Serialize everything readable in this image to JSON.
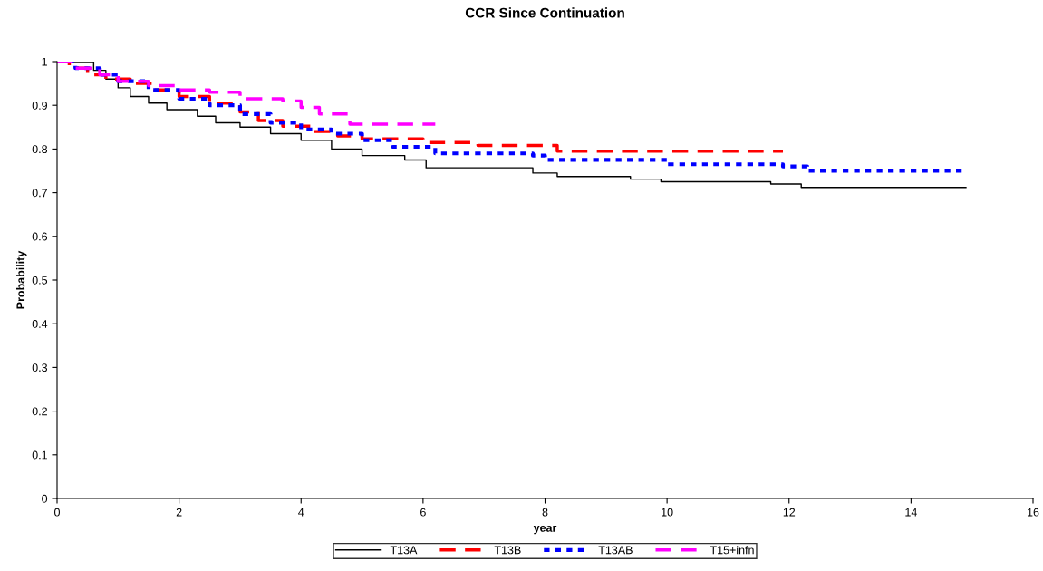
{
  "chart_data": {
    "type": "step",
    "title": "CCR Since Continuation",
    "xlabel": "year",
    "ylabel": "Probability",
    "xlim": [
      0,
      16
    ],
    "xticks": [
      0,
      2,
      4,
      6,
      8,
      10,
      12,
      14,
      16
    ],
    "ylim": [
      0,
      1
    ],
    "yticks": [
      0,
      0.1,
      0.2,
      0.3,
      0.4,
      0.5,
      0.6,
      0.7,
      0.8,
      0.9,
      1
    ],
    "grid": false,
    "legend": "bottom",
    "marker": "none",
    "series": [
      {
        "name": "T13A",
        "color": "#000000",
        "line_style": "solid",
        "x": [
          0,
          0.6,
          0.8,
          1.0,
          1.2,
          1.5,
          1.8,
          2.3,
          2.6,
          3.0,
          3.5,
          4.0,
          4.5,
          5.0,
          5.7,
          6.05,
          7.8,
          8.2,
          9.4,
          9.9,
          11.7,
          12.2,
          14.9
        ],
        "values": [
          1,
          0.98,
          0.96,
          0.94,
          0.92,
          0.905,
          0.89,
          0.875,
          0.86,
          0.85,
          0.835,
          0.82,
          0.8,
          0.785,
          0.775,
          0.757,
          0.745,
          0.737,
          0.731,
          0.725,
          0.72,
          0.712,
          0.712
        ]
      },
      {
        "name": "T13B",
        "color": "#ff0000",
        "line_style": "dashed",
        "x": [
          0,
          0.2,
          0.5,
          0.8,
          1.2,
          1.6,
          2.0,
          2.5,
          3.0,
          3.3,
          3.7,
          4.2,
          4.6,
          5.0,
          6.0,
          6.9,
          8.2,
          11.9
        ],
        "values": [
          1,
          0.985,
          0.97,
          0.96,
          0.95,
          0.935,
          0.92,
          0.905,
          0.885,
          0.865,
          0.852,
          0.84,
          0.83,
          0.823,
          0.815,
          0.808,
          0.795,
          0.795
        ]
      },
      {
        "name": "T13AB",
        "color": "#0000ff",
        "line_style": "dotted",
        "x": [
          0,
          0.3,
          0.7,
          1.0,
          1.5,
          2.0,
          2.5,
          3.0,
          3.5,
          4.0,
          4.5,
          5.0,
          5.5,
          6.2,
          7.8,
          8.0,
          9.0,
          10.0,
          11.9,
          12.3,
          14.9
        ],
        "values": [
          1,
          0.985,
          0.97,
          0.955,
          0.935,
          0.915,
          0.9,
          0.88,
          0.86,
          0.845,
          0.835,
          0.82,
          0.805,
          0.79,
          0.785,
          0.775,
          0.775,
          0.765,
          0.76,
          0.75,
          0.75
        ]
      },
      {
        "name": "T15+infn",
        "color": "#ff00ff",
        "line_style": "dashed",
        "x": [
          0,
          0.3,
          0.7,
          1.0,
          1.5,
          2.0,
          2.5,
          3.0,
          3.7,
          4.0,
          4.3,
          4.8,
          6.2
        ],
        "values": [
          1,
          0.985,
          0.97,
          0.955,
          0.945,
          0.935,
          0.93,
          0.915,
          0.91,
          0.895,
          0.88,
          0.857,
          0.857
        ]
      }
    ]
  }
}
